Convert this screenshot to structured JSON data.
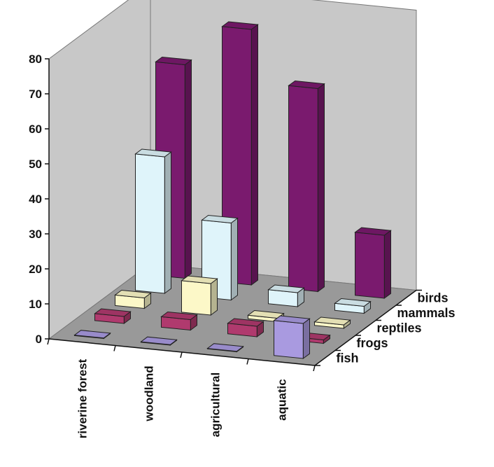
{
  "chart_data": {
    "type": "bar",
    "subtype": "3d-column",
    "categories": [
      "riverine forest",
      "woodland",
      "agricultural",
      "aquatic"
    ],
    "series": [
      {
        "name": "fish",
        "values": [
          0,
          0,
          0,
          10
        ],
        "color": "#a99ae0"
      },
      {
        "name": "frogs",
        "values": [
          2,
          3,
          3,
          1
        ],
        "color": "#b03a6e"
      },
      {
        "name": "reptiles",
        "values": [
          3,
          9,
          1,
          1
        ],
        "color": "#fcf8c8"
      },
      {
        "name": "mammals",
        "values": [
          39,
          22,
          4,
          2
        ],
        "color": "#dff4fa"
      },
      {
        "name": "birds",
        "values": [
          61,
          73,
          58,
          18
        ],
        "color": "#7a1a6e"
      }
    ],
    "ylim": [
      0,
      80
    ],
    "yticks": [
      "0",
      "10",
      "20",
      "30",
      "40",
      "50",
      "60",
      "70",
      "80"
    ],
    "grid": false,
    "legend": "none",
    "wall_color": "#c8c8c8",
    "floor_color": "#999999"
  }
}
